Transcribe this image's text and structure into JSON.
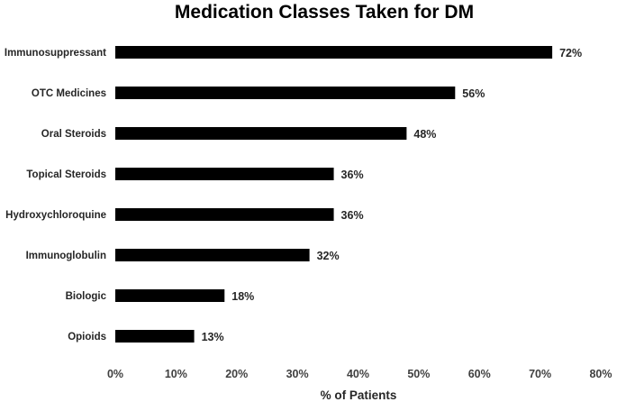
{
  "chart_data": {
    "type": "bar",
    "orientation": "horizontal",
    "title": "Medication Classes Taken for DM",
    "xlabel": "% of Patients",
    "ylabel": "",
    "categories": [
      "Immunosuppressant",
      "OTC Medicines",
      "Oral Steroids",
      "Topical Steroids",
      "Hydroxychloroquine",
      "Immunoglobulin",
      "Biologic",
      "Opioids"
    ],
    "values": [
      72,
      56,
      48,
      36,
      36,
      32,
      18,
      13
    ],
    "data_labels": [
      "72%",
      "56%",
      "48%",
      "36%",
      "36%",
      "32%",
      "18%",
      "13%"
    ],
    "xlim": [
      0,
      80
    ],
    "xticks": [
      0,
      10,
      20,
      30,
      40,
      50,
      60,
      70,
      80
    ],
    "xtick_labels": [
      "0%",
      "10%",
      "20%",
      "30%",
      "40%",
      "50%",
      "60%",
      "70%",
      "80%"
    ],
    "grid": false,
    "legend": "none",
    "bar_color": "#000000"
  }
}
